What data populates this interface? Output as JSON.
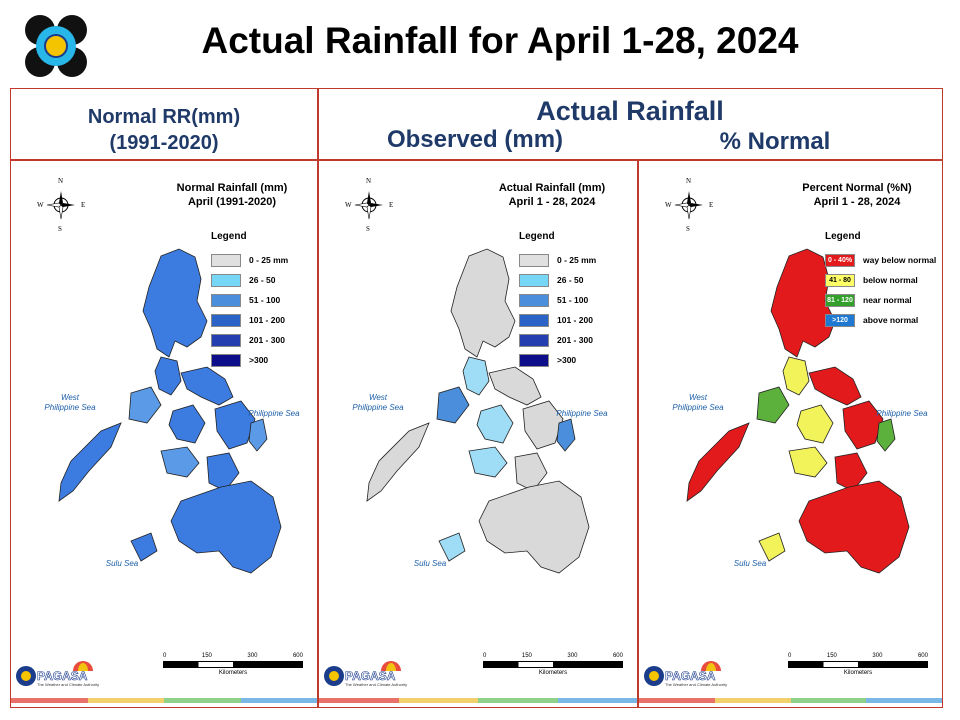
{
  "header": {
    "title": "Actual Rainfall for April 1-28, 2024"
  },
  "subheaders": {
    "normal_line1": "Normal RR(mm)",
    "normal_line2": "(1991-2020)",
    "actual": "Actual Rainfall",
    "observed": "Observed (mm)",
    "percent": "% Normal"
  },
  "colors": {
    "frame": "#c0392b",
    "heading_text": "#1f3a68",
    "strip": [
      "#e8716a",
      "#f2d06b",
      "#8fd18a",
      "#7ab8e8"
    ]
  },
  "panels": [
    {
      "title_line1": "Normal Rainfall (mm)",
      "title_line2": "April (1991-2020)",
      "legend_title": "Legend",
      "legend": [
        {
          "label": "0 - 25 mm",
          "color": "#e0e0e0",
          "swatch_text": ""
        },
        {
          "label": "26 - 50",
          "color": "#75d6f5",
          "swatch_text": ""
        },
        {
          "label": "51 - 100",
          "color": "#4b8fdc",
          "swatch_text": ""
        },
        {
          "label": "101 - 200",
          "color": "#2b63c7",
          "swatch_text": ""
        },
        {
          "label": "201 - 300",
          "color": "#233fb0",
          "swatch_text": ""
        },
        {
          "label": ">300",
          "color": "#0e0e8a",
          "swatch_text": ""
        }
      ],
      "fill_primary": "#3c7be0",
      "fill_secondary": "#2650c0",
      "fill_accent": "#5b9ae6"
    },
    {
      "title_line1": "Actual Rainfall (mm)",
      "title_line2": "April 1 - 28, 2024",
      "legend_title": "Legend",
      "legend": [
        {
          "label": "0 - 25 mm",
          "color": "#e0e0e0",
          "swatch_text": ""
        },
        {
          "label": "26 - 50",
          "color": "#75d6f5",
          "swatch_text": ""
        },
        {
          "label": "51 - 100",
          "color": "#4b8fdc",
          "swatch_text": ""
        },
        {
          "label": "101 - 200",
          "color": "#2b63c7",
          "swatch_text": ""
        },
        {
          "label": "201 - 300",
          "color": "#233fb0",
          "swatch_text": ""
        },
        {
          "label": ">300",
          "color": "#0e0e8a",
          "swatch_text": ""
        }
      ],
      "fill_primary": "#d9d9d9",
      "fill_secondary": "#9fdcf5",
      "fill_accent": "#4b8fdc"
    },
    {
      "title_line1": "Percent Normal (%N)",
      "title_line2": "April 1 - 28, 2024",
      "legend_title": "Legend",
      "legend": [
        {
          "label": "way below normal",
          "color": "#e31a1c",
          "swatch_text": "0 - 40%"
        },
        {
          "label": "below normal",
          "color": "#ffff66",
          "swatch_text": "41 - 80"
        },
        {
          "label": "near normal",
          "color": "#33a02c",
          "swatch_text": "81 - 120"
        },
        {
          "label": "above normal",
          "color": "#1f78d1",
          "swatch_text": ">120"
        }
      ],
      "fill_primary": "#e31a1c",
      "fill_secondary": "#f2f25a",
      "fill_accent": "#5cb03c"
    }
  ],
  "map_labels": {
    "west_sea_1": "West",
    "west_sea_2": "Philippine Sea",
    "philippine_sea": "Philippine Sea",
    "sulu_sea": "Sulu Sea",
    "compass": {
      "n": "N",
      "s": "S",
      "e": "E",
      "w": "W"
    }
  },
  "scale": {
    "ticks": [
      "0",
      "150",
      "300",
      "600"
    ],
    "unit": "Kilometers"
  },
  "branding": {
    "pagasa": "PAGASA",
    "pagasa_sub": "The Weather and Climate Authority"
  }
}
